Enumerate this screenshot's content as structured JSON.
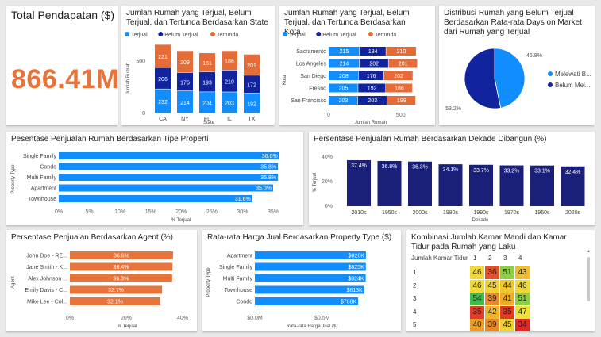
{
  "kpi": {
    "title": "Total Pendapatan ($)",
    "value": "866.41M"
  },
  "colors": {
    "terjual": "#118dff",
    "belum": "#12239e",
    "tertunda": "#e66c37",
    "dekade": "#1a1f7a",
    "agent": "#e8743b"
  },
  "chart_data": [
    {
      "id": "state",
      "type": "bar",
      "title": "Jumlah Rumah yang Terjual, Belum Terjual, dan Tertunda Berdasarkan State",
      "xlabel": "State",
      "ylabel": "Jumlah Rumah",
      "categories": [
        "CA",
        "NY",
        "FL",
        "IL",
        "TX"
      ],
      "yticks": [
        "0",
        "500"
      ],
      "series": [
        {
          "name": "Terjual",
          "values": [
            232,
            214,
            204,
            203,
            192
          ]
        },
        {
          "name": "Belum Terjual",
          "values": [
            206,
            176,
            193,
            210,
            172
          ]
        },
        {
          "name": "Tertunda",
          "values": [
            221,
            209,
            181,
            186,
            201
          ]
        }
      ]
    },
    {
      "id": "kota",
      "type": "bar",
      "title": "Jumlah Rumah yang Terjual, Belum Terjual, dan Tertunda Berdasarkan Kota",
      "xlabel": "Jumlah Rumah",
      "ylabel": "Kota",
      "categories": [
        "Sacramento",
        "Los Angeles",
        "San Diego",
        "Fresno",
        "San Francisco"
      ],
      "xticks": [
        "0",
        "500"
      ],
      "series": [
        {
          "name": "Terjual",
          "values": [
            215,
            214,
            208,
            205,
            203
          ]
        },
        {
          "name": "Belum Terjual",
          "values": [
            184,
            202,
            176,
            192,
            203
          ]
        },
        {
          "name": "Tertunda",
          "values": [
            210,
            201,
            202,
            186,
            199
          ]
        }
      ]
    },
    {
      "id": "pie",
      "type": "pie",
      "title": "Distribusi Rumah yang Belum Terjual Berdasarkan Rata-rata Days on Market dari Rumah yang Terjual",
      "labels": [
        "Melewati B...",
        "Belum Mel..."
      ],
      "values": [
        46.8,
        53.2
      ],
      "value_labels": [
        "46.8%",
        "53.2%"
      ]
    },
    {
      "id": "tipe",
      "type": "bar",
      "title": "Pesentase Penjualan Rumah Berdasarkan Tipe Properti",
      "xlabel": "% Terjual",
      "ylabel": "Property Type",
      "categories": [
        "Single Family",
        "Condo",
        "Multi Family",
        "Apartment",
        "Townhouse"
      ],
      "values": [
        36.0,
        35.8,
        35.8,
        35.0,
        31.6
      ],
      "value_labels": [
        "36.0%",
        "35.8%",
        "35.8%",
        "35.0%",
        "31.6%"
      ],
      "xticks": [
        "0%",
        "5%",
        "10%",
        "15%",
        "20%",
        "25%",
        "30%",
        "35%"
      ],
      "xlim": [
        0,
        35
      ]
    },
    {
      "id": "dekade",
      "type": "bar",
      "title": "Persentase Penjualan Rumah Berdasarkan Dekade Dibangun (%)",
      "xlabel": "Dekade",
      "ylabel": "% Terjual",
      "categories": [
        "2010s",
        "1950s",
        "2000s",
        "1980s",
        "1990s",
        "1970s",
        "1960s",
        "2020s"
      ],
      "values": [
        37.4,
        36.8,
        36.3,
        34.1,
        33.7,
        33.2,
        33.1,
        32.4
      ],
      "value_labels": [
        "37.4%",
        "36.8%",
        "36.3%",
        "34.1%",
        "33.7%",
        "33.2%",
        "33.1%",
        "32.4%"
      ],
      "yticks": [
        "0%",
        "20%",
        "40%"
      ],
      "ylim": [
        0,
        40
      ]
    },
    {
      "id": "agent",
      "type": "bar",
      "title": "Persentase Penjualan Berdasarkan Agent (%)",
      "xlabel": "% Terjual",
      "ylabel": "Agent",
      "categories": [
        "John Doe - RE...",
        "Jane Smith - K...",
        "Alex Johnson ...",
        "Emily Davis - C...",
        "Mike Lee - Col..."
      ],
      "values": [
        36.6,
        36.4,
        36.3,
        32.7,
        32.1
      ],
      "value_labels": [
        "36.6%",
        "36.4%",
        "36.3%",
        "32.7%",
        "32.1%"
      ],
      "xticks": [
        "0%",
        "20%",
        "40%"
      ],
      "xlim": [
        0,
        40
      ]
    },
    {
      "id": "harga",
      "type": "bar",
      "title": "Rata-rata Harga Jual Berdasarkan Property Type ($)",
      "xlabel": "Rata-rata Harga Jual ($)",
      "ylabel": "Property Type",
      "categories": [
        "Apartment",
        "Single Family",
        "Multi Family",
        "Townhouse",
        "Condo"
      ],
      "values": [
        826,
        825,
        824,
        813,
        768
      ],
      "value_labels": [
        "$826K",
        "$825K",
        "$824K",
        "$813K",
        "$768K"
      ],
      "xticks": [
        "$0.0M",
        "$0.5M"
      ],
      "xlim": [
        0,
        850
      ]
    },
    {
      "id": "heatmap",
      "type": "heatmap",
      "title": "Kombinasi Jumlah Kamar Mandi dan Kamar Tidur pada Rumah yang Laku",
      "row_header": "Jumlah Kamar Tidur",
      "columns": [
        "1",
        "2",
        "3",
        "4"
      ],
      "rows": [
        "1",
        "2",
        "3",
        "4",
        "5"
      ],
      "values": [
        [
          46,
          36,
          51,
          43
        ],
        [
          46,
          45,
          44,
          46
        ],
        [
          54,
          39,
          41,
          51
        ],
        [
          35,
          42,
          35,
          47
        ],
        [
          40,
          39,
          45,
          34
        ]
      ]
    }
  ]
}
